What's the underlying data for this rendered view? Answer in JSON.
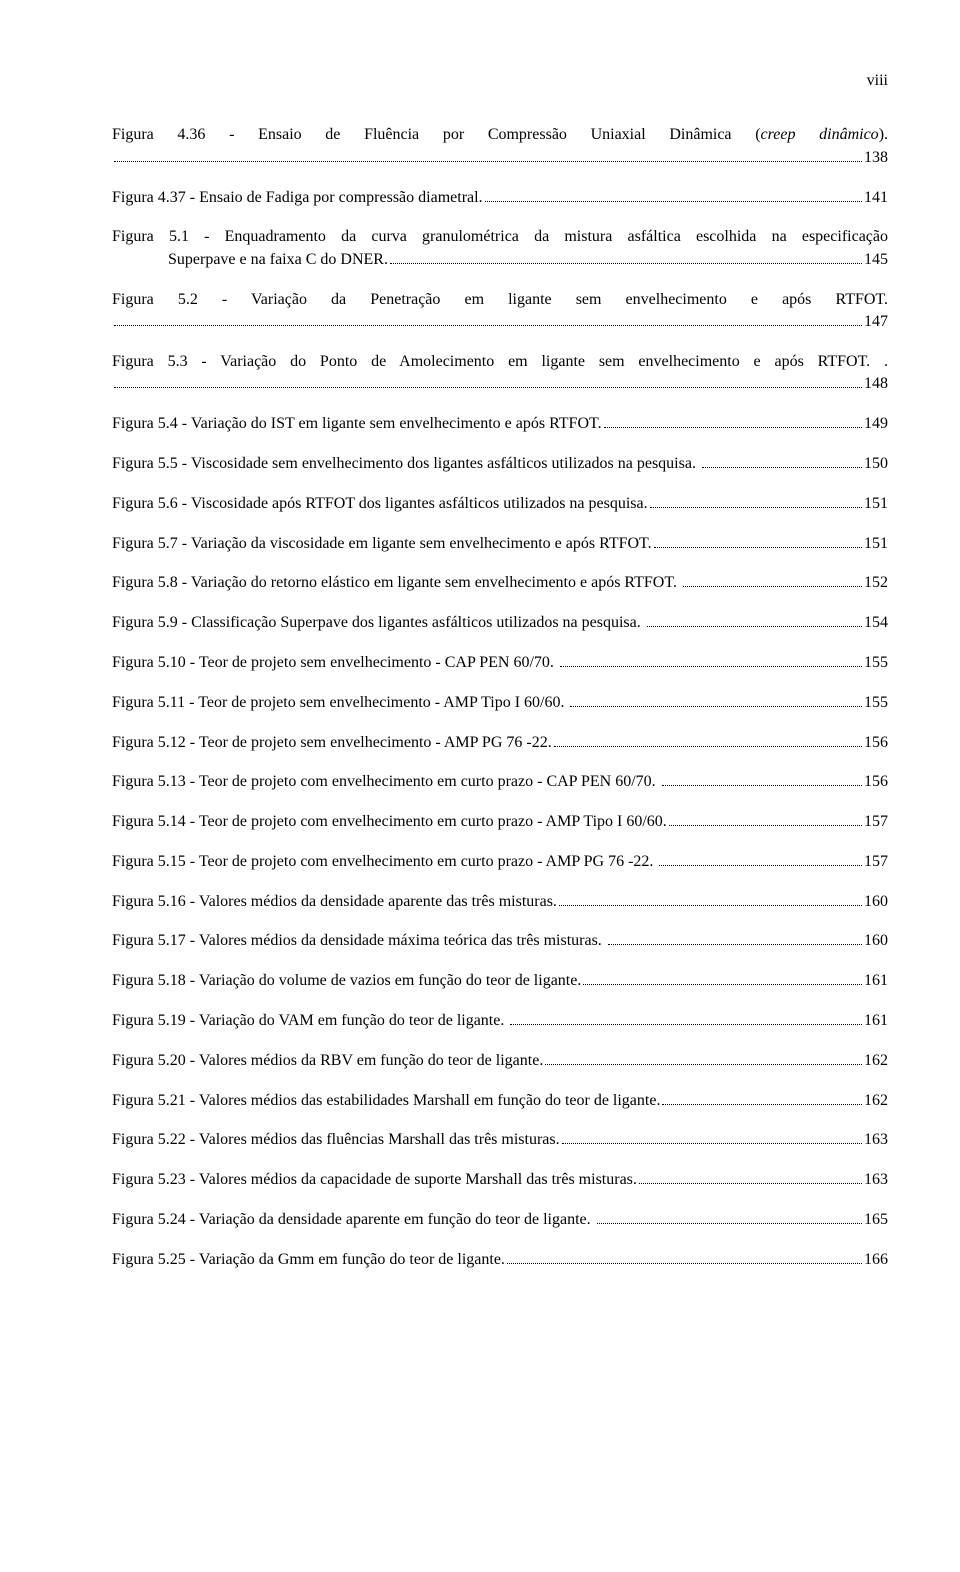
{
  "page_number": "viii",
  "entries": [
    {
      "type": "twoline",
      "prefix": "Figura 4.36 - Ensaio de Fluência por Compressão Uniaxial Dinâmica (",
      "italic": "creep dinâmico",
      "line1_tail": ").",
      "line2_text": "",
      "page": "138"
    },
    {
      "type": "simple",
      "text": "Figura 4.37 - Ensaio de Fadiga por compressão diametral.",
      "page": "141"
    },
    {
      "type": "indent",
      "line1": "Figura 5.1 - Enquadramento da curva granulométrica da mistura asfáltica escolhida na especificação",
      "line2": "Superpave e na faixa C do DNER.",
      "page": "145"
    },
    {
      "type": "twoline",
      "line1": "Figura 5.2 - Variação da Penetração em ligante sem envelhecimento e após RTFOT.",
      "line2_text": "",
      "page": "147"
    },
    {
      "type": "twoline",
      "line1": "Figura 5.3 - Variação do Ponto de Amolecimento em ligante sem envelhecimento e após RTFOT. .",
      "line2_text": "",
      "page": "148"
    },
    {
      "type": "simple",
      "text": "Figura 5.4 - Variação do IST em ligante sem envelhecimento e após RTFOT.",
      "page": "149"
    },
    {
      "type": "simple",
      "text": "Figura 5.5 - Viscosidade sem envelhecimento dos ligantes asfálticos utilizados na pesquisa. ",
      "page": "150"
    },
    {
      "type": "simple",
      "text": "Figura 5.6 - Viscosidade após RTFOT dos ligantes asfálticos utilizados na pesquisa.",
      "page": "151"
    },
    {
      "type": "simple",
      "text": "Figura 5.7 - Variação da viscosidade em ligante sem envelhecimento e após RTFOT.",
      "page": "151"
    },
    {
      "type": "simple",
      "text": "Figura 5.8 - Variação do retorno elástico em ligante sem envelhecimento e após RTFOT. ",
      "page": "152"
    },
    {
      "type": "simple",
      "text": "Figura 5.9 - Classificação Superpave dos ligantes asfálticos utilizados na pesquisa. ",
      "page": "154"
    },
    {
      "type": "simple",
      "text": "Figura 5.10 - Teor de projeto sem envelhecimento - CAP PEN 60/70. ",
      "page": "155"
    },
    {
      "type": "simple",
      "text": "Figura 5.11 - Teor de projeto sem envelhecimento - AMP Tipo I 60/60. ",
      "page": "155"
    },
    {
      "type": "simple",
      "text": "Figura 5.12 - Teor de projeto sem envelhecimento - AMP PG 76 -22.",
      "page": "156"
    },
    {
      "type": "simple",
      "text": "Figura 5.13 - Teor de projeto com envelhecimento em curto prazo - CAP PEN 60/70. ",
      "page": "156"
    },
    {
      "type": "simple",
      "text": "Figura 5.14 - Teor de projeto com envelhecimento em curto prazo - AMP Tipo I 60/60.",
      "page": "157"
    },
    {
      "type": "simple",
      "text": "Figura 5.15 - Teor de projeto com envelhecimento em curto prazo - AMP PG 76 -22. ",
      "page": "157"
    },
    {
      "type": "simple",
      "text": "Figura 5.16 - Valores médios da densidade aparente das três misturas.",
      "page": "160"
    },
    {
      "type": "simple",
      "text": "Figura 5.17 - Valores médios da densidade máxima teórica das três misturas. ",
      "page": "160"
    },
    {
      "type": "simple",
      "text": "Figura 5.18 - Variação do volume de vazios em função do teor de ligante.",
      "page": "161"
    },
    {
      "type": "simple",
      "text": "Figura 5.19 - Variação do VAM em função do teor de ligante. ",
      "page": "161"
    },
    {
      "type": "simple",
      "text": "Figura 5.20 - Valores médios da RBV em função do teor de ligante.",
      "page": "162"
    },
    {
      "type": "simple",
      "text": "Figura 5.21 - Valores médios das estabilidades Marshall em função do teor de ligante.",
      "page": "162"
    },
    {
      "type": "simple",
      "text": "Figura 5.22 - Valores médios das fluências Marshall das três misturas.",
      "page": "163"
    },
    {
      "type": "simple",
      "text": "Figura 5.23 - Valores médios da capacidade de suporte Marshall das três misturas.",
      "page": "163"
    },
    {
      "type": "simple",
      "text": "Figura 5.24 - Variação da densidade aparente em função do teor de ligante. ",
      "page": "165"
    },
    {
      "type": "simple",
      "text": "Figura 5.25 - Variação da Gmm em função do teor de ligante.",
      "page": "166"
    }
  ]
}
